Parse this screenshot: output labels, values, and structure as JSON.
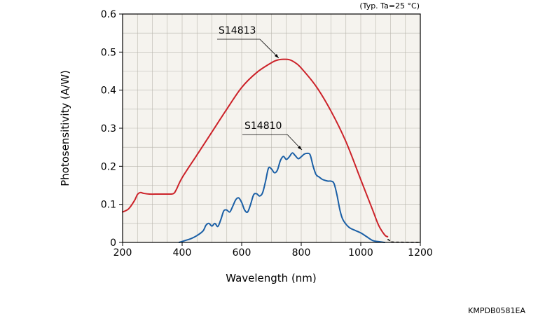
{
  "chart_data": {
    "type": "line",
    "xlabel": "Wavelength (nm)",
    "ylabel": "Photosensitivity (A/W)",
    "note": "(Typ. Ta=25 °C)",
    "code": "KMPDB0581EA",
    "xlim": [
      200,
      1200
    ],
    "ylim": [
      0,
      0.6
    ],
    "xticks": [
      200,
      400,
      600,
      800,
      1000,
      1200
    ],
    "xtick_labels": [
      "200",
      "400",
      "600",
      "800",
      "1000",
      "1200"
    ],
    "yticks": [
      0,
      0.1,
      0.2,
      0.3,
      0.4,
      0.5,
      0.6
    ],
    "ytick_labels": [
      "0",
      "0.1",
      "0.2",
      "0.3",
      "0.4",
      "0.5",
      "0.6"
    ],
    "grid": true,
    "plot_background": "#f5f3ee",
    "series": [
      {
        "name": "S14813",
        "color": "#cc2229",
        "x": [
          200,
          220,
          240,
          250,
          260,
          270,
          290,
          320,
          350,
          370,
          380,
          400,
          450,
          500,
          550,
          600,
          650,
          700,
          720,
          740,
          760,
          780,
          800,
          850,
          900,
          950,
          1000,
          1040,
          1060,
          1080,
          1090
        ],
        "y": [
          0.08,
          0.088,
          0.11,
          0.126,
          0.131,
          0.129,
          0.127,
          0.127,
          0.127,
          0.128,
          0.138,
          0.17,
          0.23,
          0.29,
          0.35,
          0.407,
          0.446,
          0.472,
          0.479,
          0.481,
          0.48,
          0.472,
          0.458,
          0.41,
          0.345,
          0.265,
          0.165,
          0.085,
          0.045,
          0.02,
          0.015
        ]
      },
      {
        "name": "S14810",
        "color": "#1a5fa6",
        "x": [
          390,
          410,
          430,
          450,
          470,
          480,
          490,
          500,
          510,
          520,
          530,
          540,
          550,
          560,
          570,
          580,
          590,
          600,
          610,
          620,
          630,
          640,
          650,
          660,
          670,
          680,
          690,
          700,
          710,
          720,
          730,
          740,
          750,
          760,
          770,
          780,
          790,
          800,
          810,
          820,
          830,
          840,
          850,
          860,
          870,
          880,
          890,
          900,
          910,
          920,
          930,
          940,
          960,
          980,
          1000,
          1020,
          1040,
          1060,
          1080
        ],
        "y": [
          0.0,
          0.005,
          0.01,
          0.018,
          0.03,
          0.045,
          0.05,
          0.043,
          0.05,
          0.042,
          0.06,
          0.083,
          0.085,
          0.08,
          0.095,
          0.112,
          0.117,
          0.105,
          0.085,
          0.08,
          0.1,
          0.125,
          0.128,
          0.122,
          0.13,
          0.16,
          0.195,
          0.193,
          0.183,
          0.19,
          0.215,
          0.226,
          0.218,
          0.225,
          0.235,
          0.228,
          0.22,
          0.225,
          0.232,
          0.234,
          0.23,
          0.2,
          0.178,
          0.172,
          0.166,
          0.163,
          0.161,
          0.161,
          0.155,
          0.125,
          0.085,
          0.06,
          0.04,
          0.032,
          0.025,
          0.015,
          0.005,
          0.002,
          0.0
        ]
      }
    ],
    "tail": {
      "x": [
        1090,
        1095,
        1100,
        1110,
        1200
      ],
      "y": [
        0.008,
        0.006,
        0.003,
        0.001,
        0.0
      ],
      "color": "#000000"
    }
  }
}
